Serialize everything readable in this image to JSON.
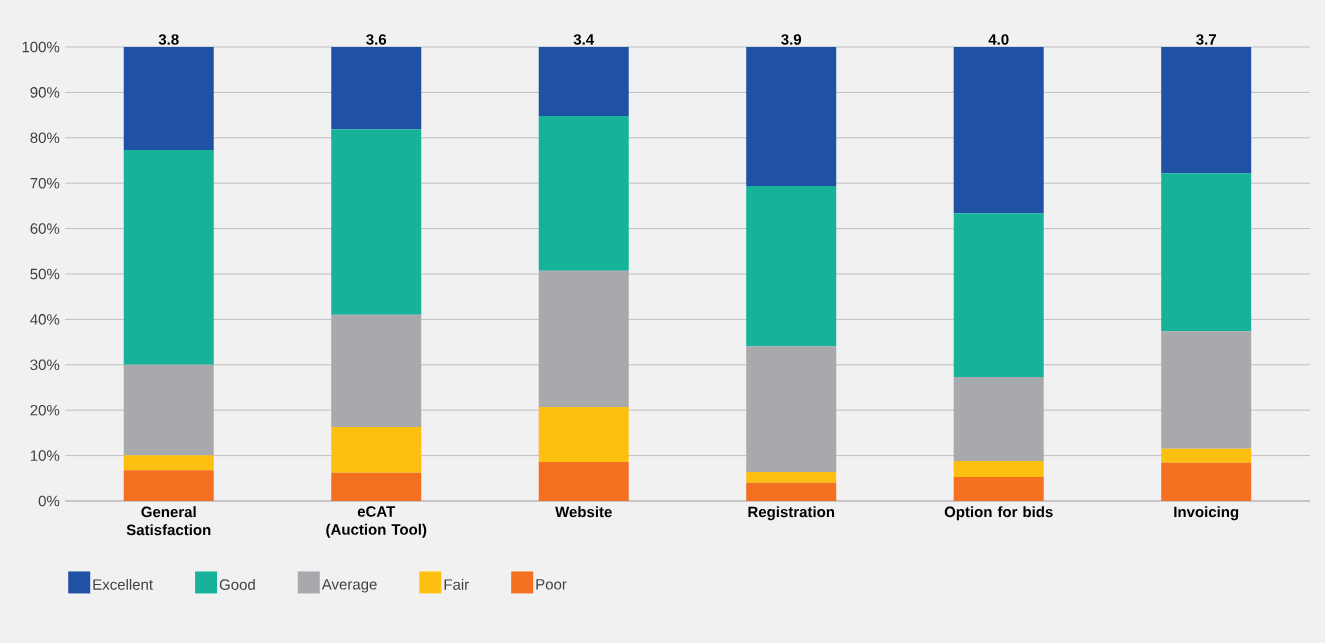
{
  "chart_data": {
    "type": "bar",
    "stacked": true,
    "categories": [
      "General Satisfaction",
      "eCAT (Auction Tool)",
      "Website",
      "Registration",
      "Option for bids",
      "Invoicing"
    ],
    "series": [
      {
        "name": "Poor",
        "color": "#f37021",
        "values": [
          6.8,
          6.2,
          8.6,
          4.0,
          5.3,
          8.4
        ]
      },
      {
        "name": "Fair",
        "color": "#fdc010",
        "values": [
          3.3,
          10.1,
          12.1,
          2.4,
          3.5,
          3.1
        ]
      },
      {
        "name": "Average",
        "color": "#a7a9ac",
        "values": [
          19.9,
          24.7,
          30.0,
          27.7,
          18.5,
          25.9
        ]
      },
      {
        "name": "Good",
        "color": "#16b29a",
        "values": [
          47.3,
          40.9,
          34.1,
          35.3,
          36.1,
          34.8
        ]
      },
      {
        "name": "Excellent",
        "color": "#1f52a5",
        "values": [
          22.7,
          18.1,
          15.2,
          30.6,
          36.6,
          27.8
        ]
      }
    ],
    "annotations": [
      {
        "text": "3.8",
        "x": "General Satisfaction",
        "y": 100
      },
      {
        "text": "3.6",
        "x": "eCAT (Auction Tool)",
        "y": 100
      },
      {
        "text": "3.4",
        "x": "Website",
        "y": 100
      },
      {
        "text": "3.9",
        "x": "Registration",
        "y": 100
      },
      {
        "text": "4.0",
        "x": "Option for bids",
        "y": 100
      },
      {
        "text": "3.7",
        "x": "Invoicing",
        "y": 100
      }
    ],
    "ylim": [
      0,
      100
    ],
    "yticks": [
      {
        "value": 0,
        "label": "0%"
      },
      {
        "value": 10,
        "label": "10%"
      },
      {
        "value": 20,
        "label": "20%"
      },
      {
        "value": 30,
        "label": "30%"
      },
      {
        "value": 40,
        "label": "40%"
      },
      {
        "value": 50,
        "label": "50%"
      },
      {
        "value": 60,
        "label": "60%"
      },
      {
        "value": 70,
        "label": "70%"
      },
      {
        "value": 80,
        "label": "80%"
      },
      {
        "value": 90,
        "label": "90%"
      },
      {
        "value": 100,
        "label": "100%"
      }
    ],
    "grid": "y",
    "legend": "bottom"
  }
}
